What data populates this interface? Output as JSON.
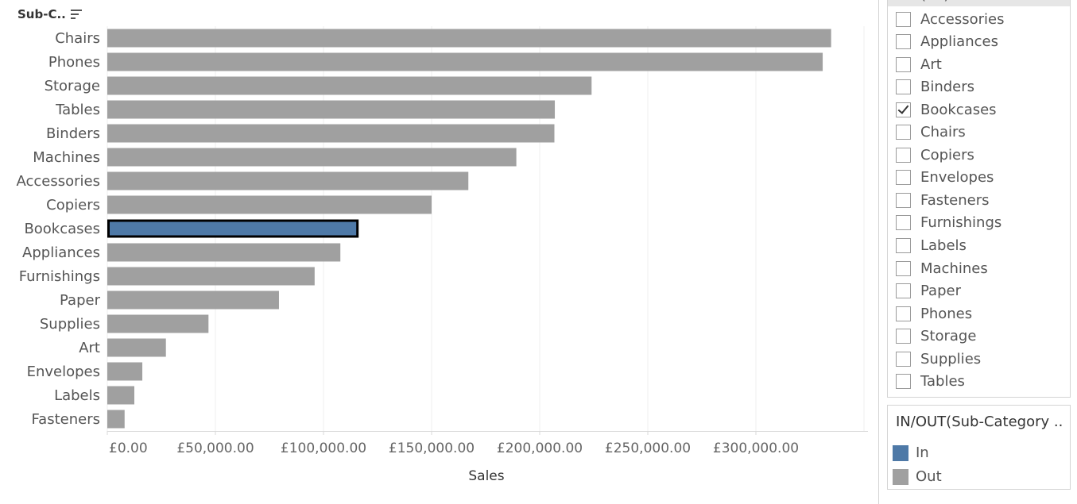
{
  "header": {
    "row_field": "Sub-C.."
  },
  "chart_data": {
    "type": "bar",
    "orientation": "horizontal",
    "categories": [
      "Chairs",
      "Phones",
      "Storage",
      "Tables",
      "Binders",
      "Machines",
      "Accessories",
      "Copiers",
      "Bookcases",
      "Appliances",
      "Furnishings",
      "Paper",
      "Supplies",
      "Art",
      "Envelopes",
      "Labels",
      "Fasteners"
    ],
    "values": [
      334800,
      330900,
      224000,
      207000,
      206800,
      189200,
      167000,
      150000,
      115700,
      107800,
      95900,
      79400,
      46800,
      27100,
      16200,
      12500,
      8000
    ],
    "highlighted": [
      "Bookcases"
    ],
    "xlabel": "Sales",
    "xlim": [
      0,
      350000
    ],
    "xticks": [
      0,
      50000,
      100000,
      150000,
      200000,
      250000,
      300000
    ],
    "xtick_labels": [
      "£0.00",
      "£50,000.00",
      "£100,000.00",
      "£150,000.00",
      "£200,000.00",
      "£250,000.00",
      "£300,000.00"
    ],
    "grid": true,
    "colors": {
      "in": "#4e79a7",
      "out": "#a0a0a0",
      "highlight_border": "#000000"
    }
  },
  "filter": {
    "top_item": "(All)",
    "items": [
      {
        "label": "Accessories",
        "checked": false
      },
      {
        "label": "Appliances",
        "checked": false
      },
      {
        "label": "Art",
        "checked": false
      },
      {
        "label": "Binders",
        "checked": false
      },
      {
        "label": "Bookcases",
        "checked": true
      },
      {
        "label": "Chairs",
        "checked": false
      },
      {
        "label": "Copiers",
        "checked": false
      },
      {
        "label": "Envelopes",
        "checked": false
      },
      {
        "label": "Fasteners",
        "checked": false
      },
      {
        "label": "Furnishings",
        "checked": false
      },
      {
        "label": "Labels",
        "checked": false
      },
      {
        "label": "Machines",
        "checked": false
      },
      {
        "label": "Paper",
        "checked": false
      },
      {
        "label": "Phones",
        "checked": false
      },
      {
        "label": "Storage",
        "checked": false
      },
      {
        "label": "Supplies",
        "checked": false
      },
      {
        "label": "Tables",
        "checked": false
      }
    ]
  },
  "legend": {
    "title": "IN/OUT(Sub-Category ...",
    "items": [
      {
        "label": "In",
        "color": "#4e79a7"
      },
      {
        "label": "Out",
        "color": "#a0a0a0"
      }
    ]
  }
}
